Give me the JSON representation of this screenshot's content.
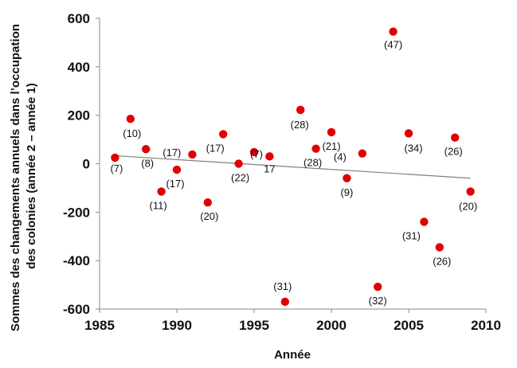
{
  "chart_data": {
    "type": "scatter",
    "title": "",
    "xlabel": "Année",
    "ylabel_lines": [
      "Sommes des changements annuels dans l’occupation",
      "des colonies (année 2 – année 1)"
    ],
    "xlim": [
      1985,
      2010
    ],
    "ylim": [
      -600,
      600
    ],
    "x_ticks": [
      "1985",
      "1990",
      "1995",
      "2000",
      "2005",
      "2010"
    ],
    "y_ticks": [
      "600",
      "400",
      "200",
      "0",
      "-200",
      "-400",
      "-600"
    ],
    "grid": false,
    "marker_color": "#e00000",
    "trendline": {
      "from": [
        1986,
        33
      ],
      "to": [
        2009,
        -60
      ],
      "color": "#808080"
    },
    "points": [
      {
        "x": 1986,
        "y": 25,
        "label": "(7)"
      },
      {
        "x": 1987,
        "y": 185,
        "label": "(10)"
      },
      {
        "x": 1988,
        "y": 60,
        "label": "(8)"
      },
      {
        "x": 1989,
        "y": -115,
        "label": "(11)"
      },
      {
        "x": 1990,
        "y": -25,
        "label": "(17)"
      },
      {
        "x": 1991,
        "y": 38,
        "label": "(17)"
      },
      {
        "x": 1992,
        "y": -160,
        "label": "(20)"
      },
      {
        "x": 1993,
        "y": 122,
        "label": "(17)"
      },
      {
        "x": 1994,
        "y": 0,
        "label": "(22)"
      },
      {
        "x": 1995,
        "y": 48,
        "label": "(7)"
      },
      {
        "x": 1996,
        "y": 30,
        "label": "17"
      },
      {
        "x": 1997,
        "y": -570,
        "label": "(31)"
      },
      {
        "x": 1998,
        "y": 222,
        "label": "(28)"
      },
      {
        "x": 1999,
        "y": 62,
        "label": "(28)"
      },
      {
        "x": 2000,
        "y": 130,
        "label": "(21)"
      },
      {
        "x": 2001,
        "y": -60,
        "label": "(9)"
      },
      {
        "x": 2002,
        "y": 42,
        "label": "(4)"
      },
      {
        "x": 2003,
        "y": -508,
        "label": "(32)"
      },
      {
        "x": 2004,
        "y": 545,
        "label": "(47)"
      },
      {
        "x": 2005,
        "y": 125,
        "label": "(34)"
      },
      {
        "x": 2006,
        "y": -240,
        "label": "(31)"
      },
      {
        "x": 2007,
        "y": -345,
        "label": "(26)"
      },
      {
        "x": 2008,
        "y": 108,
        "label": "(26)"
      },
      {
        "x": 2009,
        "y": -115,
        "label": "(20)"
      }
    ]
  }
}
